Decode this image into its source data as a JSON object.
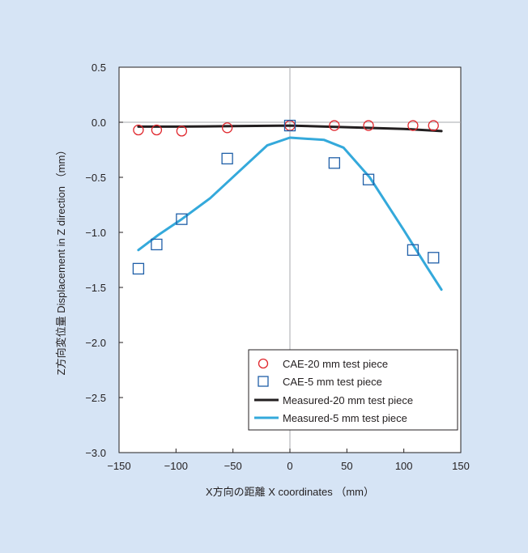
{
  "chart_data": {
    "type": "scatter",
    "xlabel": "X方向の距離  X coordinates （mm）",
    "ylabel": "Z方向変位量  Displacement in Z direction （mm）",
    "xlim": [
      -150,
      150
    ],
    "ylim": [
      -3.0,
      0.5
    ],
    "xticks": [
      -150,
      -100,
      -50,
      0,
      50,
      100,
      150
    ],
    "xtick_labels": [
      "−150",
      "−100",
      "−50",
      "0",
      "50",
      "100",
      "150"
    ],
    "yticks": [
      0.5,
      0.0,
      -0.5,
      -1.0,
      -1.5,
      -2.0,
      -2.5,
      -3.0
    ],
    "ytick_labels": [
      "0.5",
      "0.0",
      "−0.5",
      "−1.0",
      "−1.5",
      "−2.0",
      "−2.5",
      "−3.0"
    ],
    "grid": "zero-lines",
    "legend_position": "bottom-right",
    "series": [
      {
        "name": "CAE-20 mm test piece",
        "kind": "markers",
        "marker": "circle",
        "color": "#e0262c",
        "x": [
          -133,
          -117,
          -95,
          -55,
          0,
          39,
          69,
          108,
          126
        ],
        "y": [
          -0.07,
          -0.07,
          -0.08,
          -0.05,
          -0.03,
          -0.03,
          -0.03,
          -0.03,
          -0.03
        ]
      },
      {
        "name": "CAE-5 mm test piece",
        "kind": "markers",
        "marker": "square",
        "color": "#1f5fa8",
        "x": [
          -133,
          -117,
          -95,
          -55,
          0,
          39,
          69,
          108,
          126
        ],
        "y": [
          -1.33,
          -1.11,
          -0.88,
          -0.33,
          -0.03,
          -0.37,
          -0.52,
          -1.16,
          -1.23
        ]
      },
      {
        "name": "Measured-20 mm test piece",
        "kind": "line",
        "color": "#231f20",
        "x": [
          -133,
          -100,
          -50,
          0,
          50,
          100,
          133
        ],
        "y": [
          -0.04,
          -0.04,
          -0.035,
          -0.03,
          -0.045,
          -0.06,
          -0.08
        ]
      },
      {
        "name": "Measured-5 mm test piece",
        "kind": "line",
        "color": "#34a9db",
        "x": [
          -133,
          -115,
          -95,
          -70,
          -45,
          -20,
          0,
          30,
          47,
          70,
          100,
          120,
          133
        ],
        "y": [
          -1.16,
          -1.02,
          -0.88,
          -0.69,
          -0.45,
          -0.21,
          -0.14,
          -0.16,
          -0.23,
          -0.5,
          -0.98,
          -1.31,
          -1.52
        ]
      }
    ]
  }
}
